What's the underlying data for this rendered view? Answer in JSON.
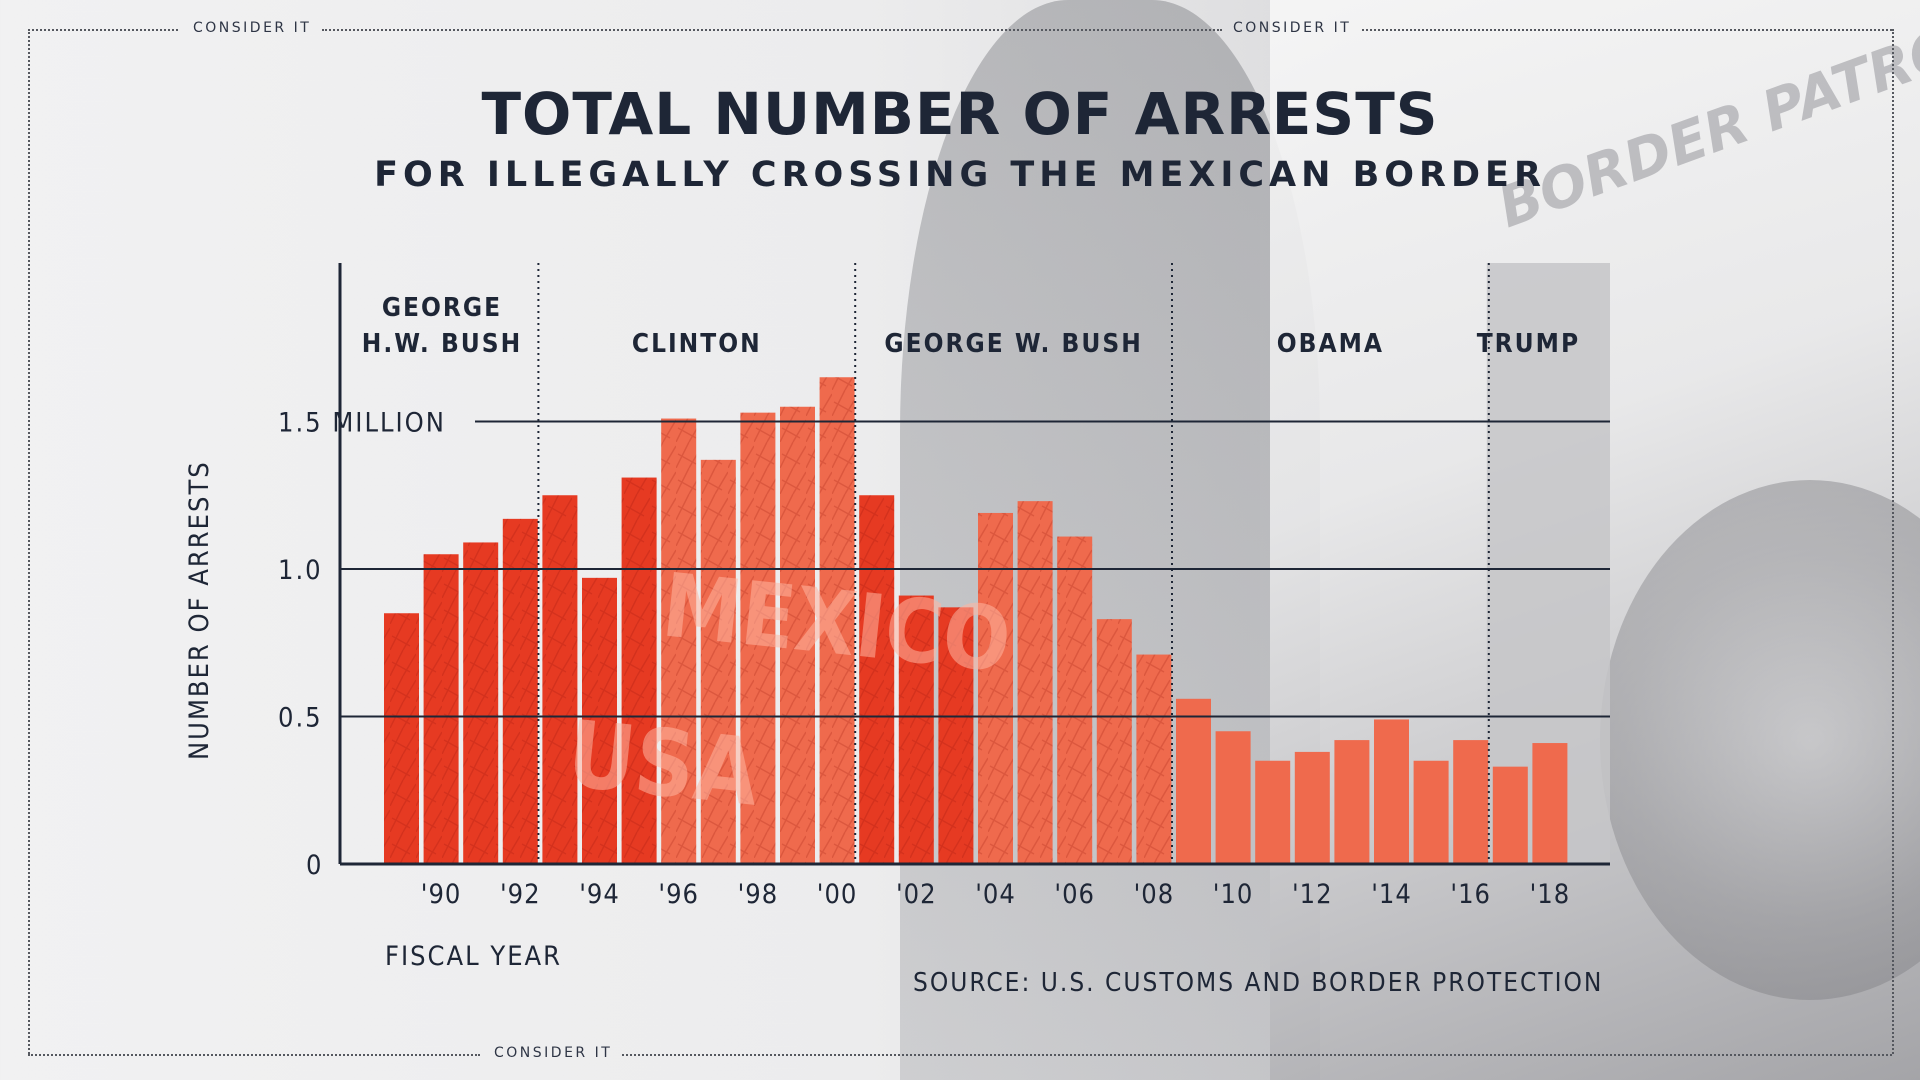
{
  "brand": {
    "top_left": "CONSIDER IT",
    "top_center": "CONSIDER IT",
    "bottom_center": "CONSIDER IT"
  },
  "background": {
    "truck_text": "BORDER PATROL",
    "sign_text_1": "MEXICO",
    "sign_text_2": "USA"
  },
  "source": "SOURCE: U.S. CUSTOMS AND BORDER PROTECTION",
  "colors": {
    "bar": "#e63a22",
    "bar_light": "#ef6a4d",
    "text": "#1e2636",
    "trump_shade": "#c6c6c8"
  },
  "chart_data": {
    "type": "bar",
    "title": "TOTAL NUMBER OF ARRESTS",
    "subtitle": "FOR ILLEGALLY CROSSING THE MEXICAN BORDER",
    "xlabel": "FISCAL YEAR",
    "ylabel": "NUMBER OF ARRESTS",
    "ylim": [
      0,
      2.0
    ],
    "y_ticks": [
      {
        "value": 0,
        "label": "0"
      },
      {
        "value": 0.5,
        "label": "0.5"
      },
      {
        "value": 1.0,
        "label": "1.0"
      },
      {
        "value": 1.5,
        "label": "1.5 MILLION"
      }
    ],
    "grid": "horizontal at 0.5, 1.0, 1.5",
    "categories": [
      "1989",
      "1990",
      "1991",
      "1992",
      "1993",
      "1994",
      "1995",
      "1996",
      "1997",
      "1998",
      "1999",
      "2000",
      "2001",
      "2002",
      "2003",
      "2004",
      "2005",
      "2006",
      "2007",
      "2008",
      "2009",
      "2010",
      "2011",
      "2012",
      "2013",
      "2014",
      "2015",
      "2016",
      "2017",
      "2018"
    ],
    "x_tick_labels": [
      {
        "year": "1990",
        "label": "'90"
      },
      {
        "year": "1992",
        "label": "'92"
      },
      {
        "year": "1994",
        "label": "'94"
      },
      {
        "year": "1996",
        "label": "'96"
      },
      {
        "year": "1998",
        "label": "'98"
      },
      {
        "year": "2000",
        "label": "'00"
      },
      {
        "year": "2002",
        "label": "'02"
      },
      {
        "year": "2004",
        "label": "'04"
      },
      {
        "year": "2006",
        "label": "'06"
      },
      {
        "year": "2008",
        "label": "'08"
      },
      {
        "year": "2010",
        "label": "'10"
      },
      {
        "year": "2012",
        "label": "'12"
      },
      {
        "year": "2014",
        "label": "'14"
      },
      {
        "year": "2016",
        "label": "'16"
      },
      {
        "year": "2018",
        "label": "'18"
      }
    ],
    "values": [
      0.85,
      1.05,
      1.09,
      1.17,
      1.25,
      0.97,
      1.31,
      1.51,
      1.37,
      1.53,
      1.55,
      1.65,
      1.25,
      0.91,
      0.87,
      1.19,
      1.23,
      1.11,
      0.83,
      0.71,
      0.56,
      0.45,
      0.35,
      0.38,
      0.42,
      0.49,
      0.35,
      0.42,
      0.33,
      0.41
    ],
    "presidencies": [
      {
        "lines": [
          "GEORGE",
          "H.W. BUSH"
        ],
        "start": "1989",
        "end": "1992"
      },
      {
        "lines": [
          "CLINTON"
        ],
        "start": "1993",
        "end": "2000"
      },
      {
        "lines": [
          "GEORGE W. BUSH"
        ],
        "start": "2001",
        "end": "2008"
      },
      {
        "lines": [
          "OBAMA"
        ],
        "start": "2009",
        "end": "2016"
      },
      {
        "lines": [
          "TRUMP"
        ],
        "start": "2017",
        "end": "2018",
        "shaded": true
      }
    ]
  }
}
